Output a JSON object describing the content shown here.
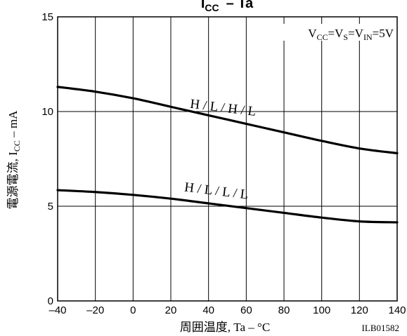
{
  "chart_data": {
    "type": "line",
    "title": {
      "main": "I",
      "sub": "CC",
      "rest": "– Ta"
    },
    "condition": {
      "parts": [
        {
          "text": "V",
          "sub": "CC"
        },
        {
          "text": "=V",
          "sub": "S"
        },
        {
          "text": "=V",
          "sub": "IN"
        },
        {
          "text": "=5V",
          "sub": ""
        }
      ]
    },
    "xlabel": "周囲温度, Ta – °C",
    "ylabel": {
      "prefix": "電源電流, I",
      "sub": "CC",
      "suffix": " – mA"
    },
    "xlim": [
      -40,
      140
    ],
    "ylim": [
      0,
      15
    ],
    "x_ticks": [
      -40,
      -20,
      0,
      20,
      40,
      60,
      80,
      100,
      120,
      140
    ],
    "x_tick_labels": [
      "–40",
      "–20",
      "0",
      "20",
      "40",
      "60",
      "80",
      "100",
      "120",
      "140"
    ],
    "y_ticks": [
      0,
      5,
      10,
      15
    ],
    "y_tick_labels": [
      "0",
      "5",
      "10",
      "15"
    ],
    "grid": true,
    "series": [
      {
        "name": "H / L / H / L",
        "x": [
          -40,
          -20,
          0,
          20,
          40,
          60,
          80,
          100,
          120,
          140
        ],
        "y": [
          11.3,
          11.05,
          10.7,
          10.25,
          9.8,
          9.35,
          8.9,
          8.45,
          8.05,
          7.8
        ]
      },
      {
        "name": "H / L / L / L",
        "x": [
          -40,
          -20,
          0,
          20,
          40,
          60,
          80,
          100,
          120,
          140
        ],
        "y": [
          5.85,
          5.75,
          5.6,
          5.4,
          5.15,
          4.9,
          4.65,
          4.4,
          4.2,
          4.15
        ]
      }
    ],
    "series_label_positions": [
      {
        "series": 0,
        "x": 30,
        "y": 10.2
      },
      {
        "series": 1,
        "x": 27,
        "y": 5.8
      }
    ],
    "figure_id": "ILB01582"
  }
}
